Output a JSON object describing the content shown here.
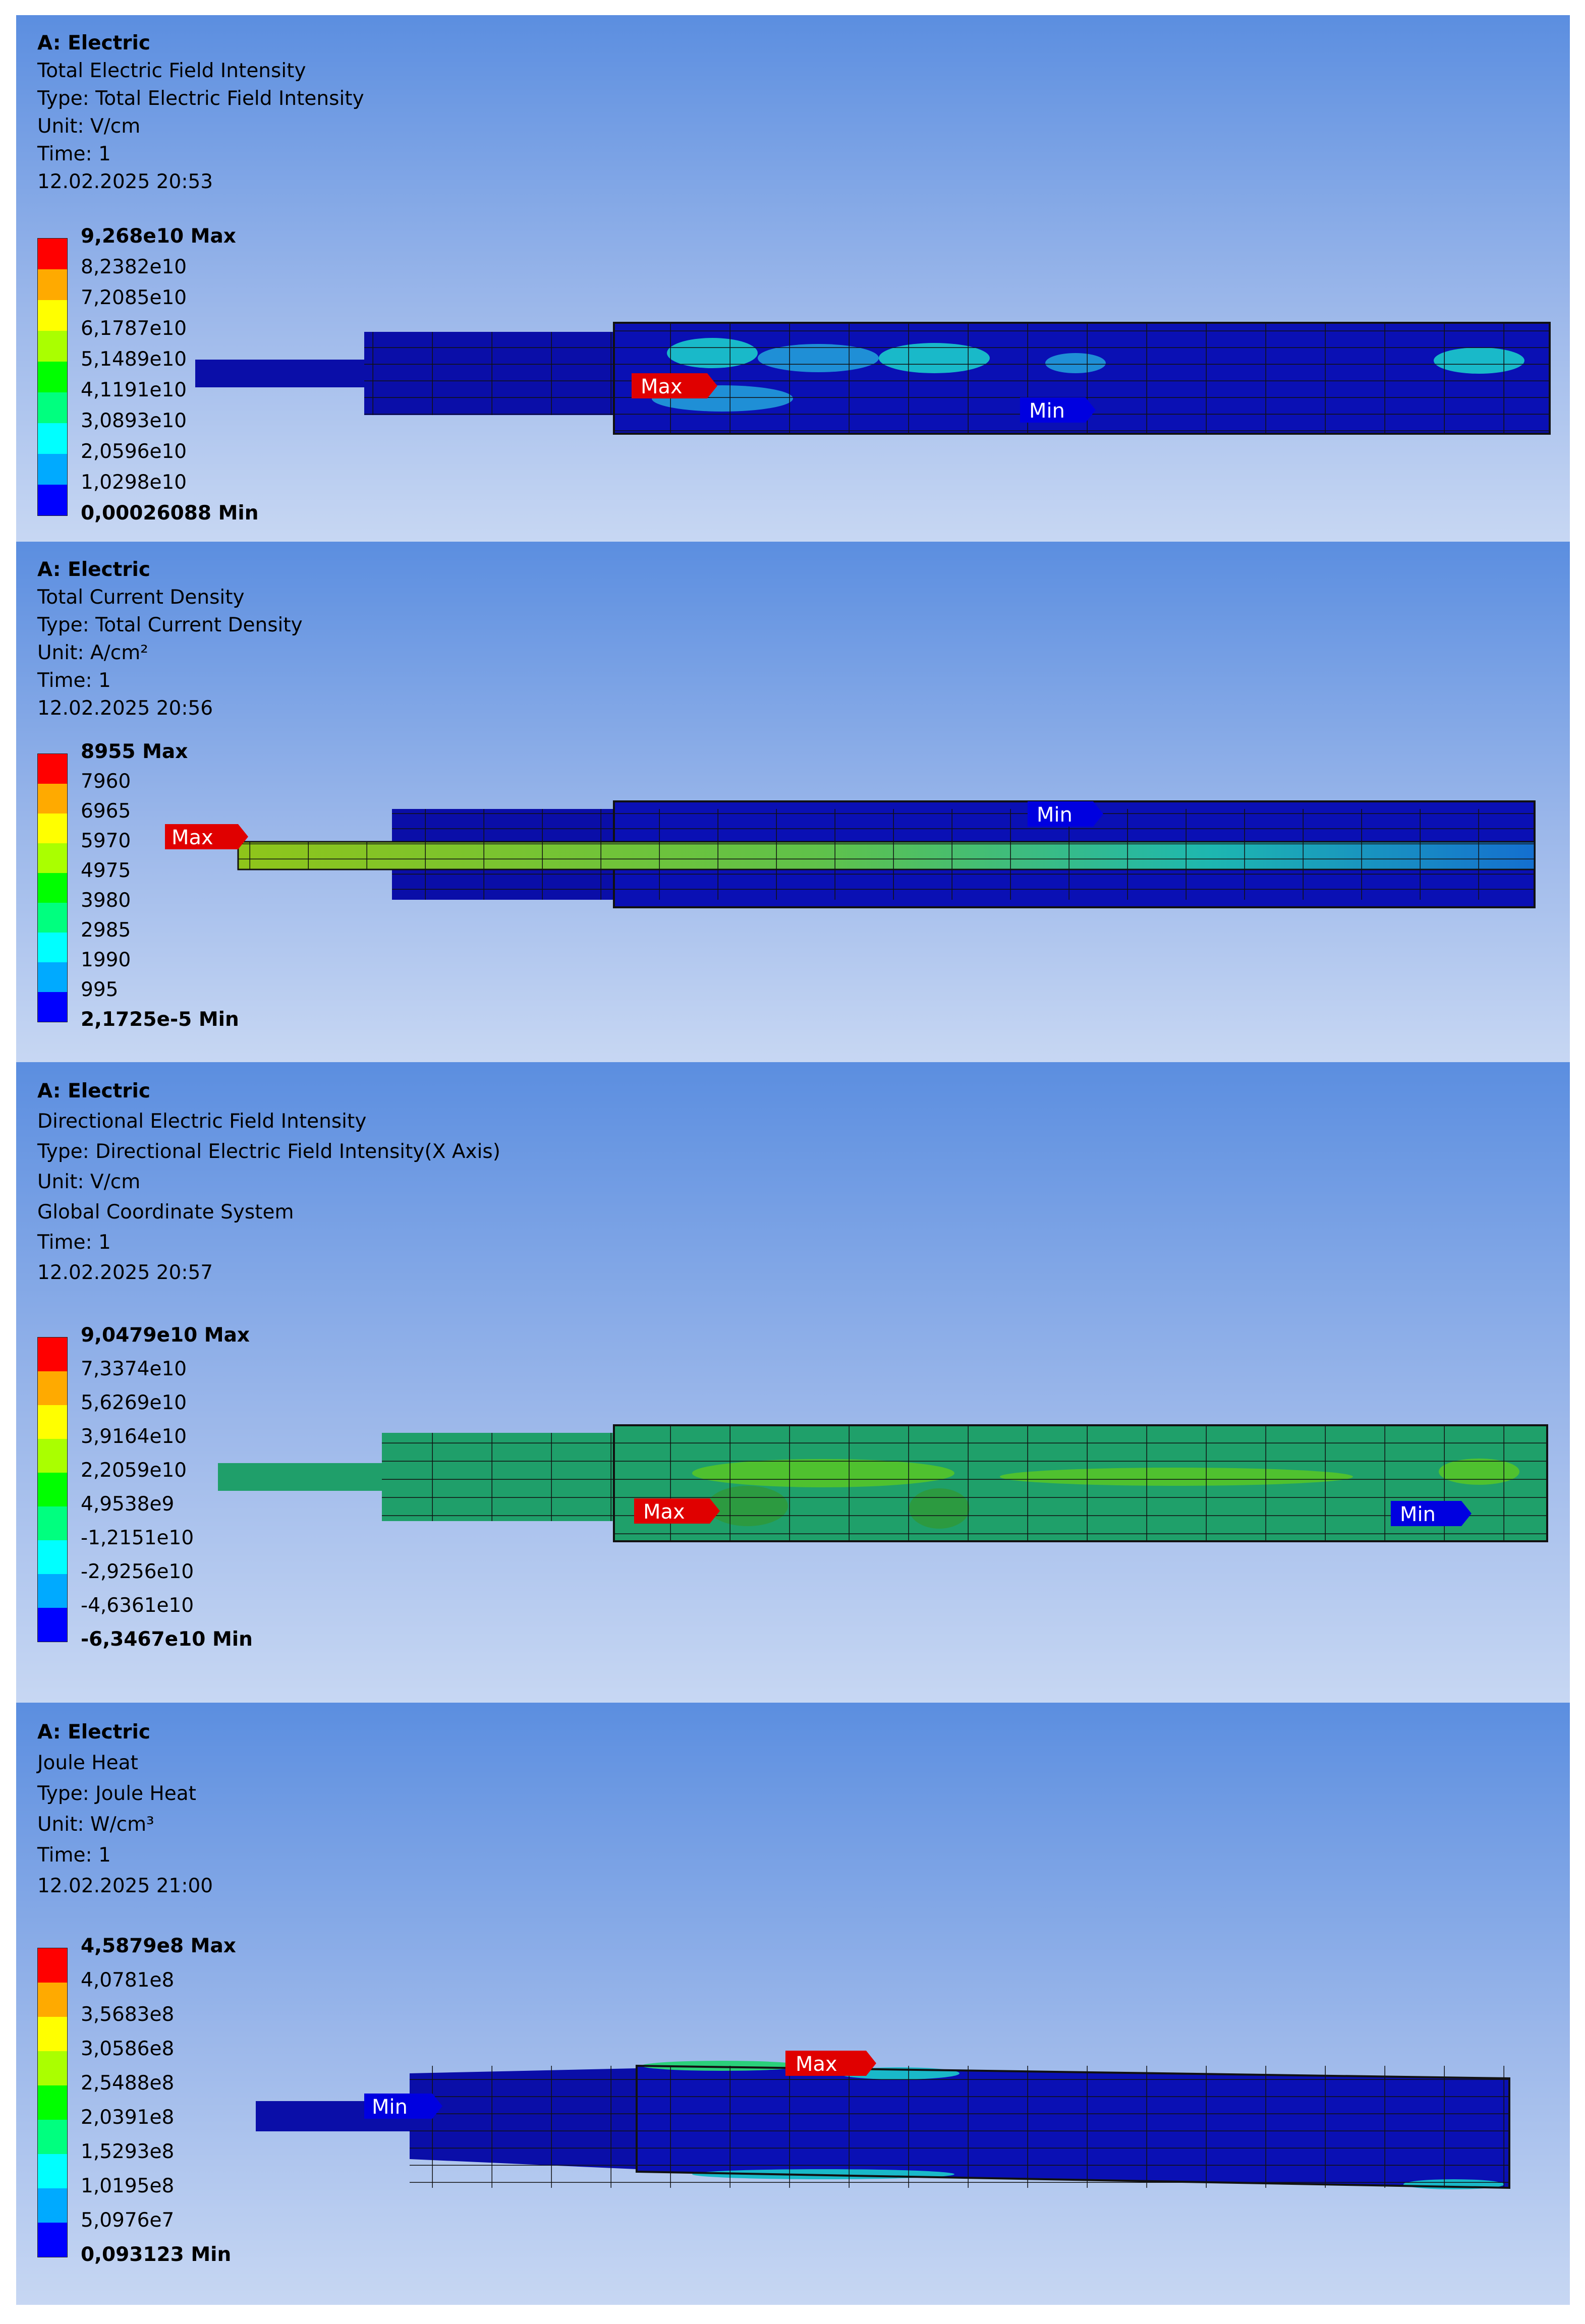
{
  "palette": [
    "#ff0000",
    "#ffaa00",
    "#ffff00",
    "#aaff00",
    "#00ff00",
    "#00ff7f",
    "#00ffff",
    "#00aaff",
    "#0000ff"
  ],
  "panels": [
    {
      "title": "A: Electric",
      "name": "Total Electric Field Intensity",
      "type": "Type: Total Electric Field Intensity",
      "unit": "Unit: V/cm",
      "coord": "",
      "time": "Time: 1",
      "date": "12.02.2025 20:53",
      "legend": [
        "9,268e10 Max",
        "8,2382e10",
        "7,2085e10",
        "6,1787e10",
        "5,1489e10",
        "4,1191e10",
        "3,0893e10",
        "2,0596e10",
        "1,0298e10",
        "0,00026088 Min"
      ],
      "max_tag": "Max",
      "min_tag": "Min"
    },
    {
      "title": "A: Electric",
      "name": "Total Current Density",
      "type": "Type: Total Current Density",
      "unit": "Unit: A/cm²",
      "coord": "",
      "time": "Time: 1",
      "date": "12.02.2025 20:56",
      "legend": [
        "8955 Max",
        "7960",
        "6965",
        "5970",
        "4975",
        "3980",
        "2985",
        "1990",
        "995",
        "2,1725e-5 Min"
      ],
      "max_tag": "Max",
      "min_tag": "Min"
    },
    {
      "title": "A: Electric",
      "name": "Directional Electric Field Intensity",
      "type": "Type: Directional Electric Field Intensity(X Axis)",
      "unit": "Unit: V/cm",
      "coord": "Global Coordinate System",
      "time": "Time: 1",
      "date": "12.02.2025 20:57",
      "legend": [
        "9,0479e10 Max",
        "7,3374e10",
        "5,6269e10",
        "3,9164e10",
        "2,2059e10",
        "4,9538e9",
        "-1,2151e10",
        "-2,9256e10",
        "-4,6361e10",
        "-6,3467e10 Min"
      ],
      "max_tag": "Max",
      "min_tag": "Min"
    },
    {
      "title": "A: Electric",
      "name": "Joule Heat",
      "type": "Type: Joule Heat",
      "unit": "Unit: W/cm³",
      "coord": "",
      "time": "Time: 1",
      "date": "12.02.2025 21:00",
      "legend": [
        "4,5879e8 Max",
        "4,0781e8",
        "3,5683e8",
        "3,0586e8",
        "2,5488e8",
        "2,0391e8",
        "1,5293e8",
        "1,0195e8",
        "5,0976e7",
        "0,093123 Min"
      ],
      "max_tag": "Max",
      "min_tag": "Min"
    }
  ]
}
